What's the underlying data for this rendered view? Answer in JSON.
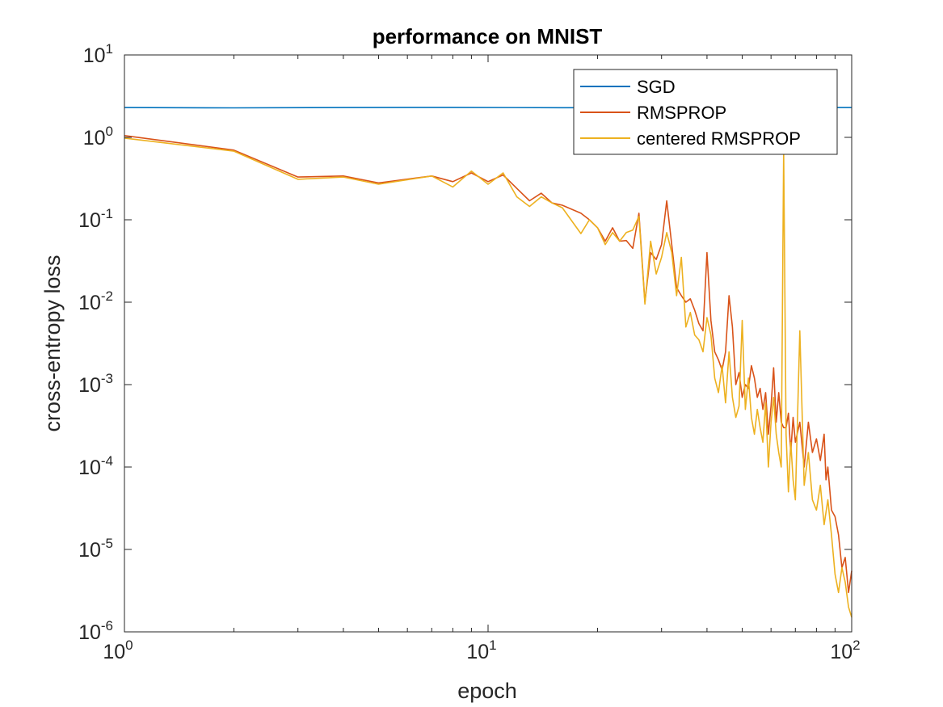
{
  "chart_data": {
    "type": "line",
    "title": "performance on MNIST",
    "xlabel": "epoch",
    "ylabel": "cross-entropy loss",
    "xscale": "log",
    "yscale": "log",
    "xlim": [
      1,
      100
    ],
    "ylim": [
      1e-06,
      10
    ],
    "x_ticks": [
      {
        "base": "10",
        "exp": "0"
      },
      {
        "base": "10",
        "exp": "1"
      },
      {
        "base": "10",
        "exp": "2"
      }
    ],
    "y_ticks": [
      {
        "base": "10",
        "exp": "-6"
      },
      {
        "base": "10",
        "exp": "-5"
      },
      {
        "base": "10",
        "exp": "-4"
      },
      {
        "base": "10",
        "exp": "-3"
      },
      {
        "base": "10",
        "exp": "-2"
      },
      {
        "base": "10",
        "exp": "-1"
      },
      {
        "base": "10",
        "exp": "0"
      },
      {
        "base": "10",
        "exp": "1"
      }
    ],
    "legend_position": "top-right",
    "grid": false,
    "series": [
      {
        "name": "SGD",
        "color": "#0072BD",
        "points": [
          [
            1,
            2.3
          ],
          [
            2,
            2.28
          ],
          [
            4,
            2.3
          ],
          [
            8,
            2.31
          ],
          [
            16,
            2.29
          ],
          [
            32,
            2.3
          ],
          [
            64,
            2.3
          ],
          [
            100,
            2.3
          ]
        ]
      },
      {
        "name": "RMSPROP",
        "color": "#D95319",
        "points": [
          [
            1,
            1.05
          ],
          [
            2,
            0.7
          ],
          [
            3,
            0.33
          ],
          [
            4,
            0.34
          ],
          [
            5,
            0.28
          ],
          [
            7,
            0.34
          ],
          [
            8,
            0.29
          ],
          [
            9,
            0.37
          ],
          [
            10,
            0.29
          ],
          [
            11,
            0.35
          ],
          [
            12,
            0.24
          ],
          [
            13,
            0.17
          ],
          [
            14,
            0.21
          ],
          [
            15,
            0.16
          ],
          [
            16,
            0.15
          ],
          [
            18,
            0.12
          ],
          [
            19,
            0.1
          ],
          [
            20,
            0.08
          ],
          [
            21,
            0.055
          ],
          [
            22,
            0.08
          ],
          [
            23,
            0.055
          ],
          [
            24,
            0.056
          ],
          [
            25,
            0.045
          ],
          [
            26,
            0.12
          ],
          [
            27,
            0.01
          ],
          [
            28,
            0.04
          ],
          [
            29,
            0.033
          ],
          [
            30,
            0.05
          ],
          [
            31,
            0.17
          ],
          [
            32,
            0.05
          ],
          [
            33,
            0.015
          ],
          [
            34,
            0.012
          ],
          [
            35,
            0.01
          ],
          [
            36,
            0.011
          ],
          [
            37,
            0.008
          ],
          [
            38,
            0.0055
          ],
          [
            39,
            0.0045
          ],
          [
            40,
            0.04
          ],
          [
            41,
            0.006
          ],
          [
            42,
            0.0025
          ],
          [
            43,
            0.002
          ],
          [
            44,
            0.0015
          ],
          [
            45,
            0.0025
          ],
          [
            46,
            0.012
          ],
          [
            47,
            0.005
          ],
          [
            48,
            0.001
          ],
          [
            49,
            0.0014
          ],
          [
            50,
            0.0007
          ],
          [
            51,
            0.001
          ],
          [
            52,
            0.0009
          ],
          [
            53,
            0.0017
          ],
          [
            54,
            0.0012
          ],
          [
            55,
            0.0007
          ],
          [
            56,
            0.0009
          ],
          [
            57,
            0.0005
          ],
          [
            58,
            0.0008
          ],
          [
            59,
            0.00025
          ],
          [
            60,
            0.00055
          ],
          [
            61,
            0.0016
          ],
          [
            62,
            0.00035
          ],
          [
            63,
            0.0008
          ],
          [
            64,
            0.00035
          ],
          [
            65,
            0.0003
          ],
          [
            66,
            0.0003
          ],
          [
            67,
            0.00045
          ],
          [
            68,
            0.00015
          ],
          [
            69,
            0.0004
          ],
          [
            70,
            0.0002
          ],
          [
            72,
            0.00035
          ],
          [
            74,
            0.0001
          ],
          [
            76,
            0.00035
          ],
          [
            78,
            0.00015
          ],
          [
            80,
            0.00022
          ],
          [
            82,
            0.00012
          ],
          [
            84,
            0.00025
          ],
          [
            85,
            7e-05
          ],
          [
            86,
            0.0001
          ],
          [
            88,
            3e-05
          ],
          [
            90,
            2.5e-05
          ],
          [
            92,
            1.5e-05
          ],
          [
            94,
            6e-06
          ],
          [
            96,
            8e-06
          ],
          [
            98,
            3e-06
          ],
          [
            100,
            5.5e-06
          ]
        ]
      },
      {
        "name": "centered RMSPROP",
        "color": "#EDB120",
        "points": [
          [
            1,
            0.98
          ],
          [
            2,
            0.68
          ],
          [
            3,
            0.31
          ],
          [
            4,
            0.33
          ],
          [
            5,
            0.27
          ],
          [
            7,
            0.34
          ],
          [
            8,
            0.25
          ],
          [
            9,
            0.39
          ],
          [
            10,
            0.27
          ],
          [
            11,
            0.37
          ],
          [
            12,
            0.19
          ],
          [
            13,
            0.145
          ],
          [
            14,
            0.19
          ],
          [
            15,
            0.16
          ],
          [
            16,
            0.14
          ],
          [
            18,
            0.068
          ],
          [
            19,
            0.1
          ],
          [
            20,
            0.08
          ],
          [
            21,
            0.05
          ],
          [
            22,
            0.07
          ],
          [
            23,
            0.055
          ],
          [
            24,
            0.07
          ],
          [
            25,
            0.075
          ],
          [
            26,
            0.11
          ],
          [
            27,
            0.0095
          ],
          [
            28,
            0.055
          ],
          [
            29,
            0.022
          ],
          [
            30,
            0.035
          ],
          [
            31,
            0.07
          ],
          [
            32,
            0.04
          ],
          [
            33,
            0.012
          ],
          [
            34,
            0.035
          ],
          [
            35,
            0.005
          ],
          [
            36,
            0.0075
          ],
          [
            37,
            0.004
          ],
          [
            38,
            0.0035
          ],
          [
            39,
            0.0025
          ],
          [
            40,
            0.0065
          ],
          [
            41,
            0.004
          ],
          [
            42,
            0.0012
          ],
          [
            43,
            0.0008
          ],
          [
            44,
            0.0017
          ],
          [
            45,
            0.0006
          ],
          [
            46,
            0.0025
          ],
          [
            47,
            0.0007
          ],
          [
            48,
            0.0004
          ],
          [
            49,
            0.00055
          ],
          [
            50,
            0.006
          ],
          [
            51,
            0.0005
          ],
          [
            52,
            0.0012
          ],
          [
            53,
            0.0004
          ],
          [
            54,
            0.00025
          ],
          [
            55,
            0.0005
          ],
          [
            56,
            0.0003
          ],
          [
            57,
            0.0002
          ],
          [
            58,
            0.0006
          ],
          [
            59,
            0.0001
          ],
          [
            60,
            0.00035
          ],
          [
            61,
            0.0007
          ],
          [
            62,
            0.00025
          ],
          [
            63,
            0.00015
          ],
          [
            64,
            0.0001
          ],
          [
            65,
            0.7
          ],
          [
            66,
            0.00025
          ],
          [
            67,
            5e-05
          ],
          [
            68,
            0.0002
          ],
          [
            69,
            7e-05
          ],
          [
            70,
            4e-05
          ],
          [
            72,
            0.0045
          ],
          [
            74,
            6e-05
          ],
          [
            76,
            0.00015
          ],
          [
            78,
            4e-05
          ],
          [
            80,
            3e-05
          ],
          [
            82,
            6e-05
          ],
          [
            84,
            2e-05
          ],
          [
            86,
            4e-05
          ],
          [
            88,
            1.5e-05
          ],
          [
            90,
            5e-06
          ],
          [
            92,
            3e-06
          ],
          [
            94,
            6e-06
          ],
          [
            96,
            4e-06
          ],
          [
            98,
            2e-06
          ],
          [
            100,
            1.5e-06
          ]
        ]
      }
    ]
  }
}
